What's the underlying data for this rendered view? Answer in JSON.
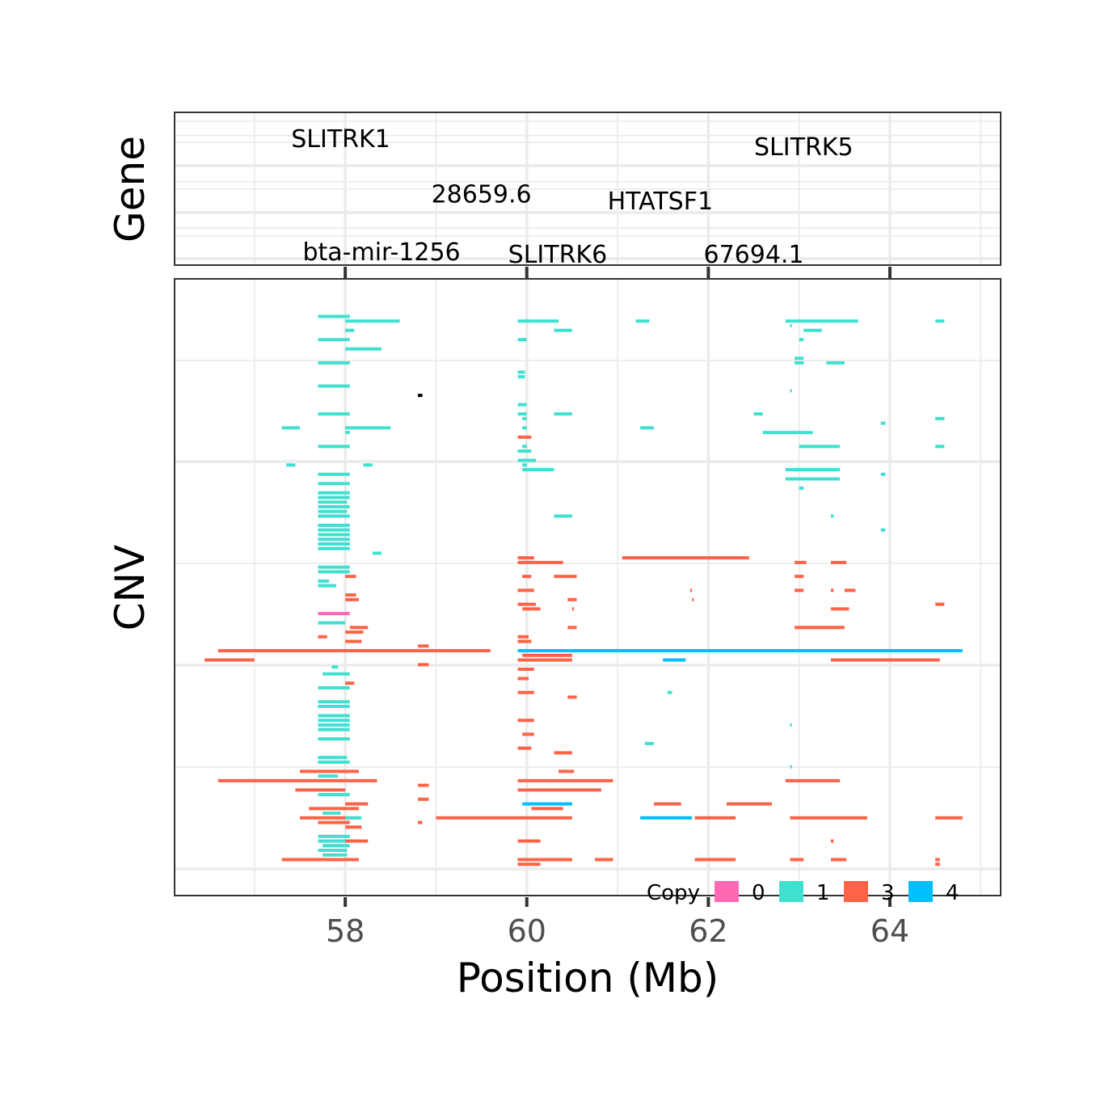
{
  "chart_data": {
    "type": "segment",
    "xlabel": "Position (Mb)",
    "xlim": [
      56.12,
      65.22
    ],
    "x_ticks": [
      58,
      60,
      62,
      64
    ],
    "x_tick_labels": [
      "58",
      "60",
      "62",
      "64"
    ],
    "grid": true,
    "panels": [
      {
        "id": "gene",
        "label": "Gene"
      },
      {
        "id": "cnv",
        "label": "CNV"
      }
    ],
    "genes": [
      {
        "label": "SLITRK1",
        "x": 57.95,
        "row": 0.6
      },
      {
        "label": "SLITRK5",
        "x": 63.05,
        "row": 0.78
      },
      {
        "label": "28659.6",
        "x": 59.5,
        "row": 1.8
      },
      {
        "label": "HTATSF1",
        "x": 61.47,
        "row": 1.95
      },
      {
        "label": "bta-mir-1256",
        "x": 58.4,
        "row": 3.05
      },
      {
        "label": "SLITRK6",
        "x": 60.34,
        "row": 3.1
      },
      {
        "label": "67694.1",
        "x": 62.5,
        "row": 3.1
      }
    ],
    "legend": {
      "title": "Copy",
      "position": "bottom-right",
      "items": [
        {
          "label": "0",
          "color": "#ff69b4"
        },
        {
          "label": "1",
          "color": "#40e0d0"
        },
        {
          "label": "3",
          "color": "#ff6347"
        },
        {
          "label": "4",
          "color": "#00bfff"
        }
      ]
    },
    "cnv_ylim": [
      0,
      56
    ],
    "cnv_segments": [
      [
        57.7,
        58.05,
        1,
        1
      ],
      [
        58.0,
        58.6,
        1.5,
        1
      ],
      [
        59.9,
        60.35,
        1.5,
        1
      ],
      [
        61.2,
        61.35,
        1.5,
        1
      ],
      [
        62.85,
        63.65,
        1.5,
        1
      ],
      [
        64.5,
        64.6,
        1.5,
        1
      ],
      [
        62.9,
        62.92,
        2,
        1
      ],
      [
        58.0,
        58.1,
        2.5,
        1
      ],
      [
        60.3,
        60.5,
        2.5,
        1
      ],
      [
        63.05,
        63.25,
        2.5,
        1
      ],
      [
        57.7,
        58.05,
        3.5,
        1
      ],
      [
        59.9,
        60.0,
        3.5,
        1
      ],
      [
        63.0,
        63.05,
        3.5,
        1
      ],
      [
        58.0,
        58.4,
        4.5,
        1
      ],
      [
        62.95,
        63.05,
        5.5,
        1
      ],
      [
        57.7,
        58.05,
        6,
        1
      ],
      [
        63.3,
        63.5,
        6,
        1
      ],
      [
        62.95,
        63.05,
        6,
        1
      ],
      [
        59.9,
        59.98,
        7,
        1
      ],
      [
        59.9,
        59.98,
        7.5,
        1
      ],
      [
        57.7,
        58.05,
        8.5,
        1
      ],
      [
        62.9,
        62.92,
        9,
        1
      ],
      [
        58.8,
        58.85,
        9.5,
        2
      ],
      [
        59.9,
        60.0,
        10.5,
        1
      ],
      [
        57.7,
        58.05,
        11.5,
        1
      ],
      [
        59.9,
        60.0,
        11.5,
        1
      ],
      [
        60.3,
        60.5,
        11.5,
        1
      ],
      [
        62.5,
        62.6,
        11.5,
        1
      ],
      [
        59.95,
        60.0,
        12,
        1
      ],
      [
        64.5,
        64.6,
        12,
        1
      ],
      [
        57.3,
        57.5,
        13,
        1
      ],
      [
        58.0,
        58.5,
        13,
        1
      ],
      [
        59.95,
        60.0,
        13,
        1
      ],
      [
        61.25,
        61.4,
        13,
        1
      ],
      [
        63.9,
        63.95,
        12.5,
        1
      ],
      [
        58.0,
        58.05,
        13.5,
        1
      ],
      [
        62.6,
        63.15,
        13.5,
        1
      ],
      [
        59.9,
        60.05,
        14,
        3
      ],
      [
        63.0,
        63.45,
        15,
        1
      ],
      [
        57.7,
        58.05,
        15,
        1
      ],
      [
        59.95,
        60.0,
        15,
        1
      ],
      [
        64.5,
        64.6,
        15,
        1
      ],
      [
        59.9,
        60.05,
        15.5,
        1
      ],
      [
        57.35,
        57.45,
        17,
        1
      ],
      [
        58.2,
        58.3,
        17,
        1
      ],
      [
        59.9,
        60.1,
        16.5,
        1
      ],
      [
        59.95,
        60.0,
        17,
        1
      ],
      [
        59.95,
        60.3,
        17.5,
        1
      ],
      [
        62.85,
        63.45,
        17.5,
        1
      ],
      [
        57.7,
        58.05,
        18,
        1
      ],
      [
        63.9,
        63.95,
        18,
        1
      ],
      [
        62.85,
        63.45,
        18.5,
        1
      ],
      [
        57.7,
        58.05,
        19,
        1
      ],
      [
        63.0,
        63.05,
        19.5,
        1
      ],
      [
        57.7,
        58.05,
        20,
        1
      ],
      [
        57.7,
        58.05,
        20.5,
        1
      ],
      [
        57.7,
        58.02,
        21,
        1
      ],
      [
        57.7,
        58.05,
        21.5,
        1
      ],
      [
        57.7,
        58.02,
        22,
        1
      ],
      [
        57.7,
        58.05,
        22.5,
        1
      ],
      [
        60.3,
        60.5,
        22.5,
        1
      ],
      [
        63.35,
        63.38,
        22.5,
        1
      ],
      [
        57.7,
        58.05,
        23.5,
        1
      ],
      [
        57.7,
        58.05,
        24,
        1
      ],
      [
        63.9,
        63.95,
        24,
        1
      ],
      [
        57.7,
        58.05,
        24.5,
        1
      ],
      [
        57.7,
        58.05,
        25,
        1
      ],
      [
        57.7,
        58.05,
        25.5,
        1
      ],
      [
        57.7,
        58.05,
        26,
        1
      ],
      [
        58.3,
        58.4,
        26.5,
        1
      ],
      [
        59.9,
        60.08,
        27,
        3
      ],
      [
        61.05,
        62.45,
        27,
        3
      ],
      [
        59.9,
        60.4,
        27.5,
        3
      ],
      [
        62.95,
        63.08,
        27.5,
        3
      ],
      [
        63.35,
        63.52,
        27.5,
        3
      ],
      [
        57.7,
        58.05,
        28,
        1
      ],
      [
        57.7,
        58.05,
        28.5,
        1
      ],
      [
        59.95,
        60.05,
        29,
        3
      ],
      [
        60.3,
        60.55,
        29,
        3
      ],
      [
        62.95,
        63.05,
        29,
        3
      ],
      [
        58.0,
        58.12,
        29,
        3
      ],
      [
        57.7,
        57.82,
        29.5,
        1
      ],
      [
        57.7,
        57.9,
        30,
        1
      ],
      [
        59.9,
        60.08,
        30.5,
        3
      ],
      [
        62.95,
        63.05,
        30.5,
        3
      ],
      [
        63.35,
        63.38,
        30.5,
        3
      ],
      [
        63.5,
        63.62,
        30.5,
        3
      ],
      [
        61.8,
        61.82,
        30.5,
        3
      ],
      [
        58.0,
        58.12,
        31,
        3
      ],
      [
        58.0,
        58.15,
        31.5,
        3
      ],
      [
        60.45,
        60.55,
        31.5,
        3
      ],
      [
        61.82,
        61.83,
        31.5,
        3
      ],
      [
        59.9,
        60.1,
        32,
        3
      ],
      [
        59.95,
        60.15,
        32.5,
        3
      ],
      [
        60.5,
        60.52,
        32.5,
        3
      ],
      [
        63.35,
        63.55,
        32.5,
        3
      ],
      [
        64.5,
        64.6,
        32,
        3
      ],
      [
        57.7,
        58.05,
        33,
        0
      ],
      [
        57.7,
        58.0,
        34,
        1
      ],
      [
        58.05,
        58.25,
        34.5,
        3
      ],
      [
        60.45,
        60.55,
        34.5,
        3
      ],
      [
        62.95,
        63.5,
        34.5,
        3
      ],
      [
        58.0,
        58.2,
        35,
        3
      ],
      [
        57.7,
        57.8,
        35.5,
        3
      ],
      [
        59.9,
        60.02,
        35.5,
        3
      ],
      [
        58.0,
        58.18,
        36,
        3
      ],
      [
        59.9,
        60.05,
        36,
        3
      ],
      [
        58.8,
        58.92,
        36.5,
        3
      ],
      [
        56.6,
        59.6,
        37,
        3
      ],
      [
        59.9,
        64.8,
        37,
        4
      ],
      [
        59.95,
        60.5,
        37.5,
        3
      ],
      [
        56.45,
        57.0,
        38,
        3
      ],
      [
        59.9,
        60.5,
        38,
        3
      ],
      [
        61.5,
        61.75,
        38,
        4
      ],
      [
        63.35,
        64.55,
        38,
        3
      ],
      [
        58.8,
        58.92,
        38.5,
        3
      ],
      [
        57.85,
        57.92,
        38.75,
        1
      ],
      [
        59.9,
        60.08,
        39,
        3
      ],
      [
        57.75,
        58.05,
        39.5,
        1
      ],
      [
        59.9,
        60.02,
        40,
        3
      ],
      [
        58.0,
        58.1,
        40.5,
        3
      ],
      [
        57.7,
        58.05,
        41,
        1
      ],
      [
        59.9,
        60.08,
        41.5,
        3
      ],
      [
        61.55,
        61.6,
        41.5,
        1
      ],
      [
        60.45,
        60.55,
        42,
        3
      ],
      [
        57.7,
        58.05,
        42.5,
        1
      ],
      [
        57.7,
        58.05,
        43,
        1
      ],
      [
        57.7,
        58.05,
        44,
        1
      ],
      [
        59.9,
        60.08,
        44.5,
        3
      ],
      [
        57.7,
        58.05,
        44.5,
        1
      ],
      [
        57.7,
        58.05,
        45,
        1
      ],
      [
        62.9,
        62.92,
        45,
        1
      ],
      [
        57.7,
        58.05,
        45.5,
        1
      ],
      [
        59.95,
        60.08,
        46,
        3
      ],
      [
        57.7,
        58.05,
        46.5,
        1
      ],
      [
        61.3,
        61.4,
        47,
        1
      ],
      [
        59.9,
        60.05,
        47.5,
        3
      ],
      [
        60.3,
        60.5,
        48,
        3
      ],
      [
        57.7,
        58.02,
        48.5,
        1
      ],
      [
        57.7,
        58.05,
        49,
        1
      ],
      [
        62.9,
        62.92,
        49.5,
        1
      ],
      [
        57.5,
        58.15,
        50,
        3
      ],
      [
        60.35,
        60.52,
        50,
        3
      ],
      [
        57.7,
        57.92,
        50.5,
        1
      ],
      [
        56.6,
        58.35,
        51,
        3
      ],
      [
        59.9,
        60.95,
        51,
        3
      ],
      [
        62.85,
        63.45,
        51,
        3
      ],
      [
        58.8,
        58.92,
        51.5,
        3
      ],
      [
        57.45,
        58.0,
        52,
        3
      ],
      [
        59.9,
        60.82,
        52,
        3
      ],
      [
        57.7,
        58.05,
        52.5,
        1
      ],
      [
        58.8,
        58.92,
        53,
        3
      ],
      [
        58.0,
        58.25,
        53.5,
        3
      ],
      [
        59.95,
        60.5,
        53.5,
        4
      ],
      [
        61.4,
        61.7,
        53.5,
        3
      ],
      [
        62.2,
        62.7,
        53.5,
        3
      ],
      [
        57.6,
        58.15,
        54,
        3
      ],
      [
        60.05,
        60.4,
        54,
        3
      ],
      [
        57.75,
        57.95,
        54.5,
        1
      ],
      [
        57.5,
        58.15,
        55,
        3
      ],
      [
        58.0,
        58.18,
        55,
        1
      ],
      [
        59.0,
        60.5,
        55,
        3
      ],
      [
        61.25,
        61.82,
        55,
        4
      ],
      [
        61.85,
        62.3,
        55,
        3
      ],
      [
        62.9,
        63.75,
        55,
        3
      ],
      [
        64.5,
        64.8,
        55,
        3
      ],
      [
        57.7,
        58.05,
        55.5,
        3
      ],
      [
        58.8,
        58.85,
        55.5,
        3
      ],
      [
        58.0,
        58.18,
        56,
        3
      ],
      [
        57.7,
        58.05,
        57,
        1
      ],
      [
        57.7,
        58.05,
        57.5,
        1
      ],
      [
        58.0,
        58.25,
        57.5,
        3
      ],
      [
        59.9,
        60.15,
        57.5,
        3
      ],
      [
        63.35,
        63.38,
        57.5,
        3
      ],
      [
        57.7,
        58.02,
        58.5,
        1
      ],
      [
        57.75,
        58.02,
        59,
        1
      ],
      [
        57.3,
        58.15,
        59.5,
        3
      ],
      [
        59.9,
        60.5,
        59.5,
        3
      ],
      [
        60.75,
        60.95,
        59.5,
        3
      ],
      [
        61.85,
        62.3,
        59.5,
        3
      ],
      [
        62.9,
        63.05,
        59.5,
        3
      ],
      [
        63.35,
        63.52,
        59.5,
        3
      ],
      [
        64.5,
        64.55,
        59.5,
        3
      ],
      [
        59.9,
        60.15,
        60,
        3
      ],
      [
        64.5,
        64.55,
        60,
        3
      ],
      [
        57.75,
        58.05,
        58,
        1
      ]
    ]
  }
}
